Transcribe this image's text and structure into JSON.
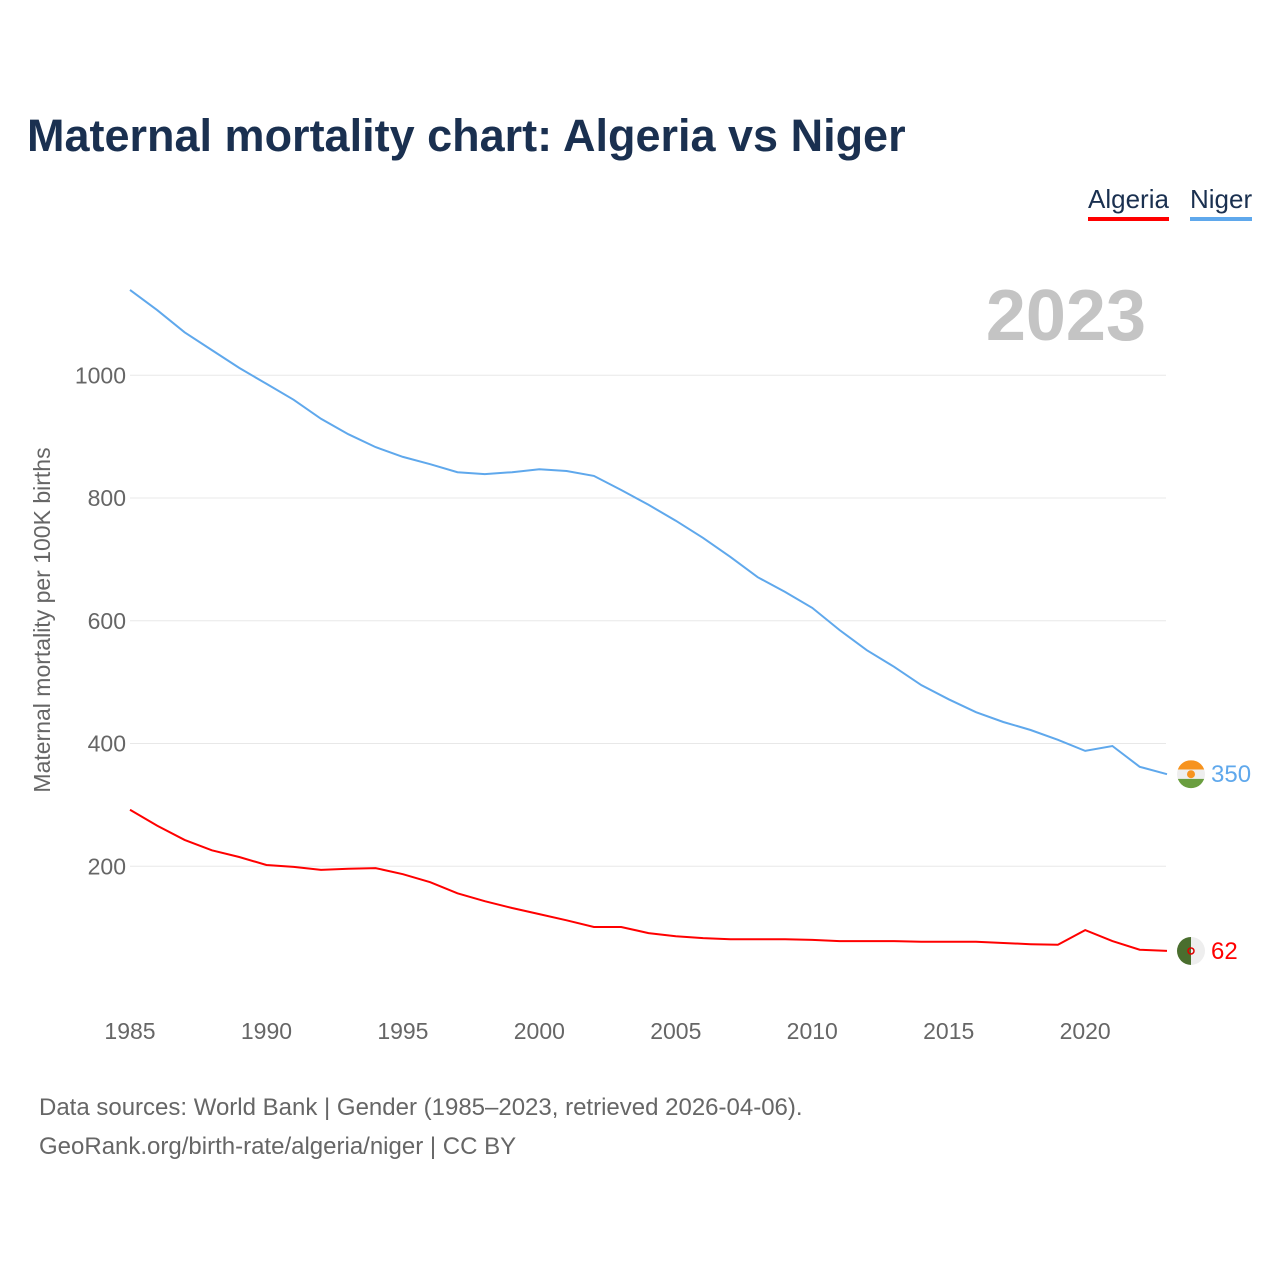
{
  "title": "Maternal mortality chart: Algeria vs Niger",
  "legend": [
    {
      "name": "Algeria",
      "color": "#ff0000"
    },
    {
      "name": "Niger",
      "color": "#5fa8ec"
    }
  ],
  "year_label": "2023",
  "source_line1": "Data sources: World Bank | Gender (1985–2023, retrieved 2026-04-06).",
  "source_line2": "GeoRank.org/birth-rate/algeria/niger | CC BY",
  "chart_data": {
    "type": "line",
    "title": "Maternal mortality chart: Algeria vs Niger",
    "ylabel": "Maternal mortality per 100K births",
    "xlabel": "",
    "xlim": [
      1985,
      2023
    ],
    "ylim": [
      0,
      1150
    ],
    "xticks": [
      "1985",
      "1990",
      "1995",
      "2000",
      "2005",
      "2010",
      "2015",
      "2020"
    ],
    "yticks": [
      "200",
      "400",
      "600",
      "800",
      "1000"
    ],
    "grid": true,
    "legend_position": "top-right",
    "x": [
      1985,
      1986,
      1987,
      1988,
      1989,
      1990,
      1991,
      1992,
      1993,
      1994,
      1995,
      1996,
      1997,
      1998,
      1999,
      2000,
      2001,
      2002,
      2003,
      2004,
      2005,
      2006,
      2007,
      2008,
      2009,
      2010,
      2011,
      2012,
      2013,
      2014,
      2015,
      2016,
      2017,
      2018,
      2019,
      2020,
      2021,
      2022,
      2023
    ],
    "series": [
      {
        "name": "Niger",
        "color": "#5fa8ec",
        "end_label": "350",
        "values": [
          1139,
          1106,
          1070,
          1041,
          1012,
          986,
          960,
          929,
          904,
          883,
          867,
          855,
          842,
          839,
          842,
          847,
          844,
          836,
          813,
          789,
          763,
          735,
          704,
          671,
          647,
          621,
          585,
          552,
          525,
          495,
          472,
          451,
          435,
          422,
          406,
          388,
          396,
          362,
          350
        ]
      },
      {
        "name": "Algeria",
        "color": "#ff0000",
        "end_label": "62",
        "values": [
          292,
          266,
          243,
          226,
          215,
          202,
          199,
          194,
          196,
          197,
          187,
          174,
          156,
          143,
          132,
          122,
          112,
          101,
          101,
          91,
          86,
          83,
          81,
          81,
          81,
          80,
          78,
          78,
          78,
          77,
          77,
          77,
          75,
          73,
          72,
          96,
          78,
          64,
          62
        ]
      }
    ]
  }
}
